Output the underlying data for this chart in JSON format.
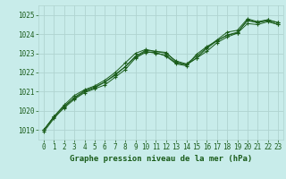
{
  "title": "Graphe pression niveau de la mer (hPa)",
  "background_color": "#c8ecea",
  "grid_color": "#b0d4d0",
  "line_color": "#1a5c1a",
  "marker_color": "#1a5c1a",
  "xlim": [
    -0.5,
    23.5
  ],
  "ylim": [
    1018.5,
    1025.5
  ],
  "yticks": [
    1019,
    1020,
    1021,
    1022,
    1023,
    1024,
    1025
  ],
  "xticks": [
    0,
    1,
    2,
    3,
    4,
    5,
    6,
    7,
    8,
    9,
    10,
    11,
    12,
    13,
    14,
    15,
    16,
    17,
    18,
    19,
    20,
    21,
    22,
    23
  ],
  "series": [
    [
      1018.9,
      1019.6,
      1020.2,
      1020.7,
      1021.05,
      1021.25,
      1021.5,
      1021.85,
      1022.3,
      1022.85,
      1023.15,
      1023.1,
      1023.05,
      1022.55,
      1022.4,
      1022.75,
      1023.1,
      1023.55,
      1023.85,
      1024.05,
      1024.75,
      1024.6,
      1024.75,
      1024.6
    ],
    [
      1019.0,
      1019.65,
      1020.15,
      1020.6,
      1020.95,
      1021.15,
      1021.35,
      1021.75,
      1022.15,
      1022.75,
      1023.05,
      1023.05,
      1022.85,
      1022.45,
      1022.35,
      1022.95,
      1023.35,
      1023.65,
      1023.95,
      1024.05,
      1024.55,
      1024.5,
      1024.65,
      1024.5
    ],
    [
      1019.0,
      1019.7,
      1020.25,
      1020.65,
      1021.0,
      1021.2,
      1021.5,
      1021.9,
      1022.3,
      1022.8,
      1023.1,
      1023.0,
      1022.9,
      1022.5,
      1022.4,
      1022.75,
      1023.25,
      1023.65,
      1023.95,
      1024.1,
      1024.7,
      1024.6,
      1024.7,
      1024.5
    ],
    [
      1019.0,
      1019.7,
      1020.3,
      1020.8,
      1021.1,
      1021.3,
      1021.6,
      1022.0,
      1022.5,
      1023.0,
      1023.2,
      1023.1,
      1023.0,
      1022.6,
      1022.45,
      1022.85,
      1023.3,
      1023.7,
      1024.1,
      1024.2,
      1024.8,
      1024.65,
      1024.75,
      1024.6
    ]
  ]
}
